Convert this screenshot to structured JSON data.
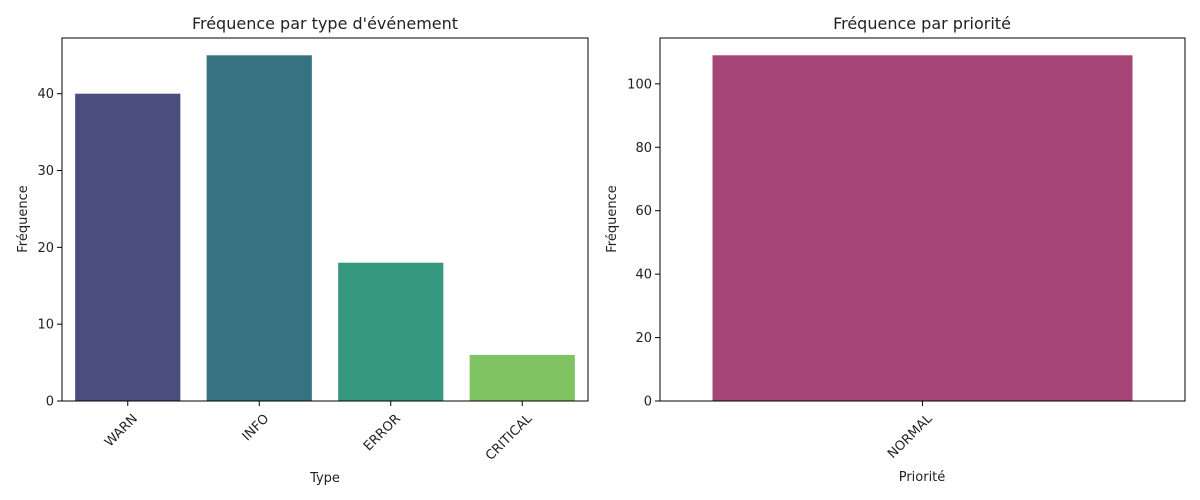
{
  "chart_data": [
    {
      "type": "bar",
      "title": "Fréquence par type d'événement",
      "xlabel": "Type",
      "ylabel": "Fréquence",
      "categories": [
        "WARN",
        "INFO",
        "ERROR",
        "CRITICAL"
      ],
      "values": [
        40,
        45,
        18,
        6
      ],
      "colors": [
        "#4a4e7d",
        "#357380",
        "#36987e",
        "#80c363"
      ],
      "ylim": [
        0,
        47.25
      ],
      "yticks": [
        0,
        10,
        20,
        30,
        40
      ],
      "grid": false,
      "legend": "none"
    },
    {
      "type": "bar",
      "title": "Fréquence par priorité",
      "xlabel": "Priorité",
      "ylabel": "Fréquence",
      "categories": [
        "NORMAL"
      ],
      "values": [
        109
      ],
      "colors": [
        "#a54677"
      ],
      "ylim": [
        0,
        114.45
      ],
      "yticks": [
        0,
        20,
        40,
        60,
        80,
        100
      ],
      "grid": false,
      "legend": "none"
    }
  ]
}
